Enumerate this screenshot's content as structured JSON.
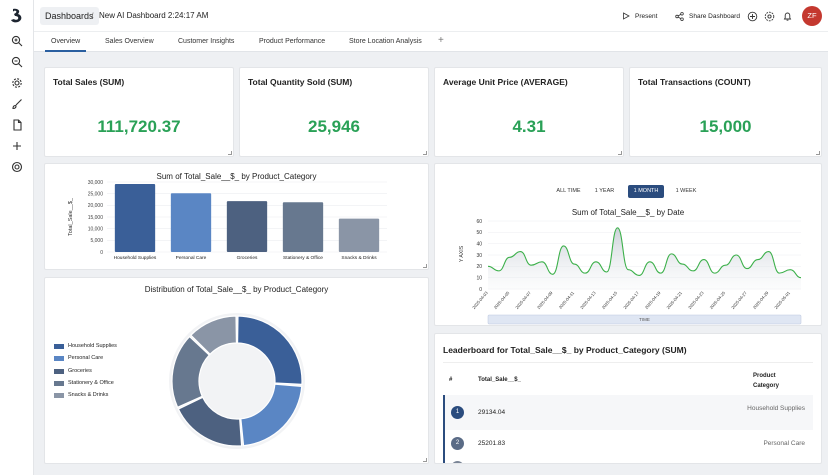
{
  "header": {
    "dashboards_label": "Dashboards",
    "separator": "/",
    "title": "New AI Dashboard 2:24:17 AM",
    "present_label": "Present",
    "share_label": "Share Dashboard",
    "avatar_initials": "ZF"
  },
  "tabs": [
    {
      "label": "Overview"
    },
    {
      "label": "Sales Overview"
    },
    {
      "label": "Customer Insights"
    },
    {
      "label": "Product Performance"
    },
    {
      "label": "Store Location Analysis"
    }
  ],
  "tab_add": "+",
  "kpis": [
    {
      "title": "Total Sales (SUM)",
      "value": "111,720.37"
    },
    {
      "title": "Total Quantity Sold (SUM)",
      "value": "25,946"
    },
    {
      "title": "Average Unit Price (AVERAGE)",
      "value": "4.31"
    },
    {
      "title": "Total Transactions (COUNT)",
      "value": "15,000"
    }
  ],
  "time_ranges": [
    "ALL TIME",
    "1 YEAR",
    "1 MONTH",
    "1 WEEK"
  ],
  "leaderboard": {
    "title": "Leaderboard for Total_Sale__$_ by Product_Category (SUM)",
    "col_rank": "#",
    "col_value": "Total_Sale__$_",
    "col_category": "Product Category",
    "rows": [
      {
        "rank": "1",
        "value": "29134.04",
        "category": "Household Supplies"
      },
      {
        "rank": "2",
        "value": "25201.83",
        "category": "Personal Care"
      }
    ]
  },
  "colors": {
    "accent": "#2b4c7e",
    "kpi_green": "#2aa157",
    "line_green": "#3cb04a",
    "avatar": "#c4382f"
  },
  "chart_data": [
    {
      "type": "bar",
      "title": "Sum of Total_Sale__$_ by Product_Category",
      "xlabel": "",
      "ylabel": "Total_Sale__$_",
      "ylim": [
        0,
        30000
      ],
      "yticks": [
        "0",
        "5,000",
        "10,000",
        "15,000",
        "20,000",
        "25,000",
        "30,000"
      ],
      "categories": [
        "Household Supplies",
        "Personal Care",
        "Groceries",
        "Stationery & Office",
        "Snacks & Drinks"
      ],
      "values": [
        29134.04,
        25201.83,
        21800,
        21300,
        14300
      ],
      "colors": [
        "#3a5f98",
        "#5a86c4",
        "#4d6180",
        "#67788f",
        "#8a95a6"
      ]
    },
    {
      "type": "line",
      "title": "Sum of Total_Sale__$_ by Date",
      "ylabel": "Y AXIS",
      "xlabel": "TIME",
      "ylim": [
        0,
        60
      ],
      "yticks": [
        "0",
        "10",
        "20",
        "30",
        "40",
        "50",
        "60"
      ],
      "x": [
        "2025-04-03",
        "2025-04-04",
        "2025-04-05",
        "2025-04-06",
        "2025-04-07",
        "2025-04-08",
        "2025-04-09",
        "2025-04-10",
        "2025-04-11",
        "2025-04-12",
        "2025-04-13",
        "2025-04-14",
        "2025-04-15",
        "2025-04-16",
        "2025-04-17",
        "2025-04-18",
        "2025-04-19",
        "2025-04-20",
        "2025-04-21",
        "2025-04-22",
        "2025-04-23",
        "2025-04-24",
        "2025-04-25",
        "2025-04-26",
        "2025-04-27",
        "2025-04-28",
        "2025-04-29",
        "2025-04-30",
        "2025-05-01",
        "2025-05-02"
      ],
      "values": [
        20,
        16,
        28,
        33,
        21,
        24,
        13,
        38,
        22,
        14,
        24,
        15,
        54,
        17,
        12,
        24,
        14,
        31,
        22,
        16,
        26,
        14,
        21,
        30,
        18,
        26,
        33,
        14,
        17,
        10
      ]
    },
    {
      "type": "pie",
      "title": "Distribution of Total_Sale__$_ by Product_Category",
      "categories": [
        "Household Supplies",
        "Personal Care",
        "Groceries",
        "Stationery & Office",
        "Snacks & Drinks"
      ],
      "values": [
        29134.04,
        25201.83,
        21800,
        21300,
        14300
      ],
      "colors": [
        "#3a5f98",
        "#5a86c4",
        "#4d6180",
        "#67788f",
        "#8a95a6"
      ]
    }
  ]
}
